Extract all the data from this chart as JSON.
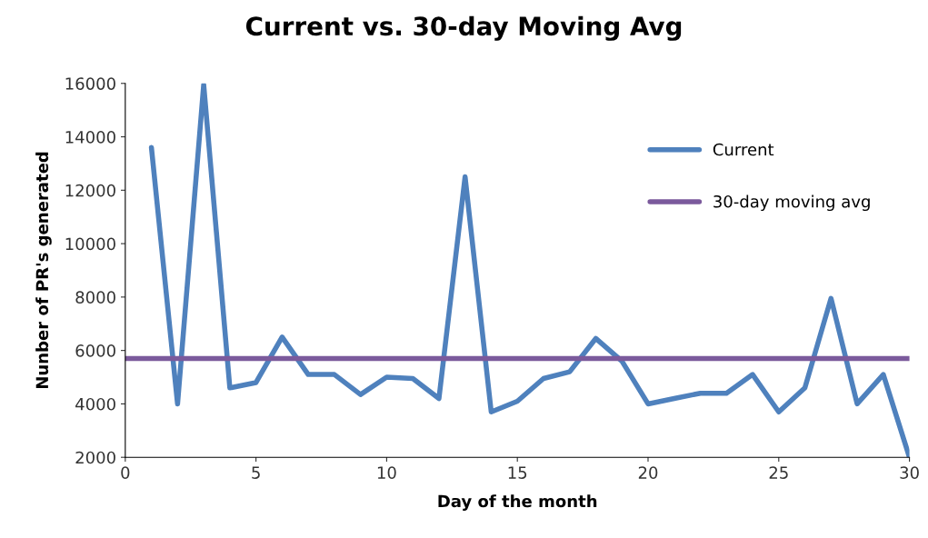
{
  "chart_data": {
    "type": "line",
    "title": "Current vs. 30-day Moving Avg",
    "xlabel": "Day of the month",
    "ylabel": "Nunber of PR's generated",
    "series": [
      {
        "name": "Current",
        "color": "#4f81bd",
        "x": [
          1,
          2,
          3,
          4,
          5,
          6,
          7,
          8,
          9,
          10,
          11,
          12,
          13,
          14,
          15,
          16,
          17,
          18,
          19,
          20,
          21,
          22,
          23,
          24,
          25,
          26,
          27,
          28,
          29,
          30
        ],
        "values": [
          13600,
          4000,
          15950,
          4600,
          4800,
          6500,
          5100,
          5100,
          4350,
          5000,
          4950,
          4200,
          12500,
          3700,
          4100,
          4950,
          5200,
          6450,
          5600,
          4000,
          4200,
          4400,
          4400,
          5100,
          3700,
          4600,
          7950,
          4000,
          5100,
          2000
        ]
      },
      {
        "name": "30-day moving avg",
        "color": "#7b5a9c",
        "x": [
          0,
          30
        ],
        "values": [
          5700,
          5700
        ]
      }
    ],
    "xlim": [
      0,
      30
    ],
    "xticks": [
      0,
      5,
      10,
      15,
      20,
      25,
      30
    ],
    "ylim": [
      2000,
      16000
    ],
    "yticks": [
      2000,
      4000,
      6000,
      8000,
      10000,
      12000,
      14000,
      16000
    ],
    "grid": false,
    "legend": "top right",
    "marker": "none",
    "line_style": "solid"
  }
}
